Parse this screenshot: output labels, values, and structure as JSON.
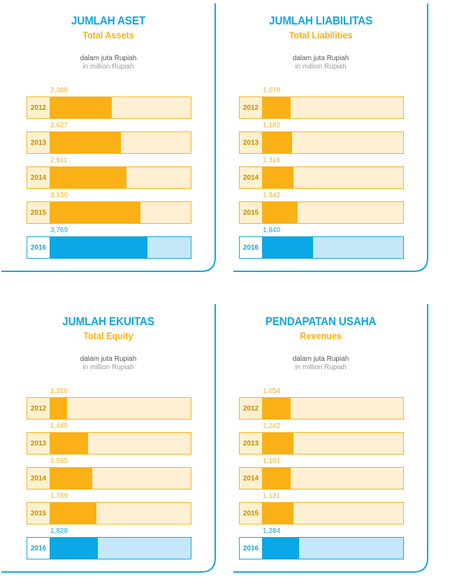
{
  "panels": [
    {
      "title": "JUMLAH ASET",
      "subtitle": "Total Assets",
      "unit_id": "dalam juta Rupiah",
      "unit_en": "in million Rupiah",
      "bars": [
        {
          "year": "2012",
          "value_label": "2,388",
          "fill_fraction": 0.44
        },
        {
          "year": "2013",
          "value_label": "2,627",
          "fill_fraction": 0.5
        },
        {
          "year": "2014",
          "value_label": "2,911",
          "fill_fraction": 0.54
        },
        {
          "year": "2015",
          "value_label": "3,130",
          "fill_fraction": 0.64
        },
        {
          "year": "2016",
          "value_label": "3,769",
          "fill_fraction": 0.69
        }
      ]
    },
    {
      "title": "JUMLAH LIABILITAS",
      "subtitle": "Total Liabilities",
      "unit_id": "dalam juta Rupiah",
      "unit_en": "in million Rupiah",
      "bars": [
        {
          "year": "2012",
          "value_label": "1,078",
          "fill_fraction": 0.2
        },
        {
          "year": "2013",
          "value_label": "1,182",
          "fill_fraction": 0.21
        },
        {
          "year": "2014",
          "value_label": "1,316",
          "fill_fraction": 0.22
        },
        {
          "year": "2015",
          "value_label": "1,342",
          "fill_fraction": 0.25
        },
        {
          "year": "2016",
          "value_label": "1,940",
          "fill_fraction": 0.36
        }
      ]
    },
    {
      "title": "JUMLAH EKUITAS",
      "subtitle": "Total Equity",
      "unit_id": "dalam juta Rupiah",
      "unit_en": "in million Rupiah",
      "bars": [
        {
          "year": "2012",
          "value_label": "1,310",
          "fill_fraction": 0.12
        },
        {
          "year": "2013",
          "value_label": "1,445",
          "fill_fraction": 0.27
        },
        {
          "year": "2014",
          "value_label": "1,595",
          "fill_fraction": 0.3
        },
        {
          "year": "2015",
          "value_label": "1,789",
          "fill_fraction": 0.33
        },
        {
          "year": "2016",
          "value_label": "1,828",
          "fill_fraction": 0.34
        }
      ]
    },
    {
      "title": "PENDAPATAN USAHA",
      "subtitle": "Revenues",
      "unit_id": "dalam juta Rupiah",
      "unit_en": "in million Rupiah",
      "bars": [
        {
          "year": "2012",
          "value_label": "1,054",
          "fill_fraction": 0.2
        },
        {
          "year": "2013",
          "value_label": "1,242",
          "fill_fraction": 0.22
        },
        {
          "year": "2014",
          "value_label": "1,101",
          "fill_fraction": 0.2
        },
        {
          "year": "2015",
          "value_label": "1,131",
          "fill_fraction": 0.22
        },
        {
          "year": "2016",
          "value_label": "1,284",
          "fill_fraction": 0.26
        }
      ]
    }
  ],
  "colors": {
    "accent_blue": "#12a6df",
    "accent_orange": "#f9b117",
    "track_orange": "#fff0d4",
    "track_blue": "#c4e8f9"
  },
  "chart_data": [
    {
      "type": "bar",
      "title": "JUMLAH ASET",
      "subtitle": "Total Assets",
      "categories": [
        "2012",
        "2013",
        "2014",
        "2015",
        "2016"
      ],
      "values": [
        2388,
        2627,
        2911,
        3130,
        3769
      ],
      "unit": "in million Rupiah",
      "orientation": "horizontal"
    },
    {
      "type": "bar",
      "title": "JUMLAH LIABILITAS",
      "subtitle": "Total Liabilities",
      "categories": [
        "2012",
        "2013",
        "2014",
        "2015",
        "2016"
      ],
      "values": [
        1078,
        1182,
        1316,
        1342,
        1940
      ],
      "unit": "in million Rupiah",
      "orientation": "horizontal"
    },
    {
      "type": "bar",
      "title": "JUMLAH EKUITAS",
      "subtitle": "Total Equity",
      "categories": [
        "2012",
        "2013",
        "2014",
        "2015",
        "2016"
      ],
      "values": [
        1310,
        1445,
        1595,
        1789,
        1828
      ],
      "unit": "in million Rupiah",
      "orientation": "horizontal"
    },
    {
      "type": "bar",
      "title": "PENDAPATAN USAHA",
      "subtitle": "Revenues",
      "categories": [
        "2012",
        "2013",
        "2014",
        "2015",
        "2016"
      ],
      "values": [
        1054,
        1242,
        1101,
        1131,
        1284
      ],
      "unit": "in million Rupiah",
      "orientation": "horizontal"
    }
  ]
}
